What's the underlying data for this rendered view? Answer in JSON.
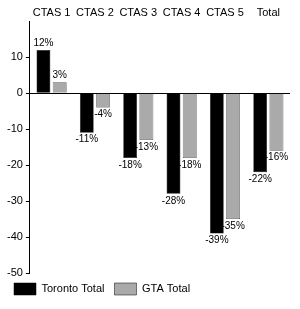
{
  "chart_data": {
    "type": "bar",
    "categories": [
      "CTAS 1",
      "CTAS 2",
      "CTAS 3",
      "CTAS 4",
      "CTAS 5",
      "Total"
    ],
    "series": [
      {
        "name": "Toronto Total",
        "color": "#000000",
        "values": [
          12,
          -11,
          -18,
          -28,
          -39,
          -22
        ],
        "value_labels": [
          "12%",
          "-11%",
          "-18%",
          "-28%",
          "-39%",
          "-22%"
        ]
      },
      {
        "name": "GTA Total",
        "color": "#aaaaaa",
        "values": [
          3,
          -4,
          -13,
          -18,
          -35,
          -16
        ],
        "value_labels": [
          "3%",
          "-4%",
          "-13%",
          "-18%",
          "-35%",
          "-16%"
        ]
      }
    ],
    "ylim": [
      -50,
      20
    ],
    "yticks": [
      -50,
      -40,
      -30,
      -20,
      -10,
      0,
      10
    ],
    "grid": false,
    "legend": "bottom",
    "data_labels": true
  }
}
